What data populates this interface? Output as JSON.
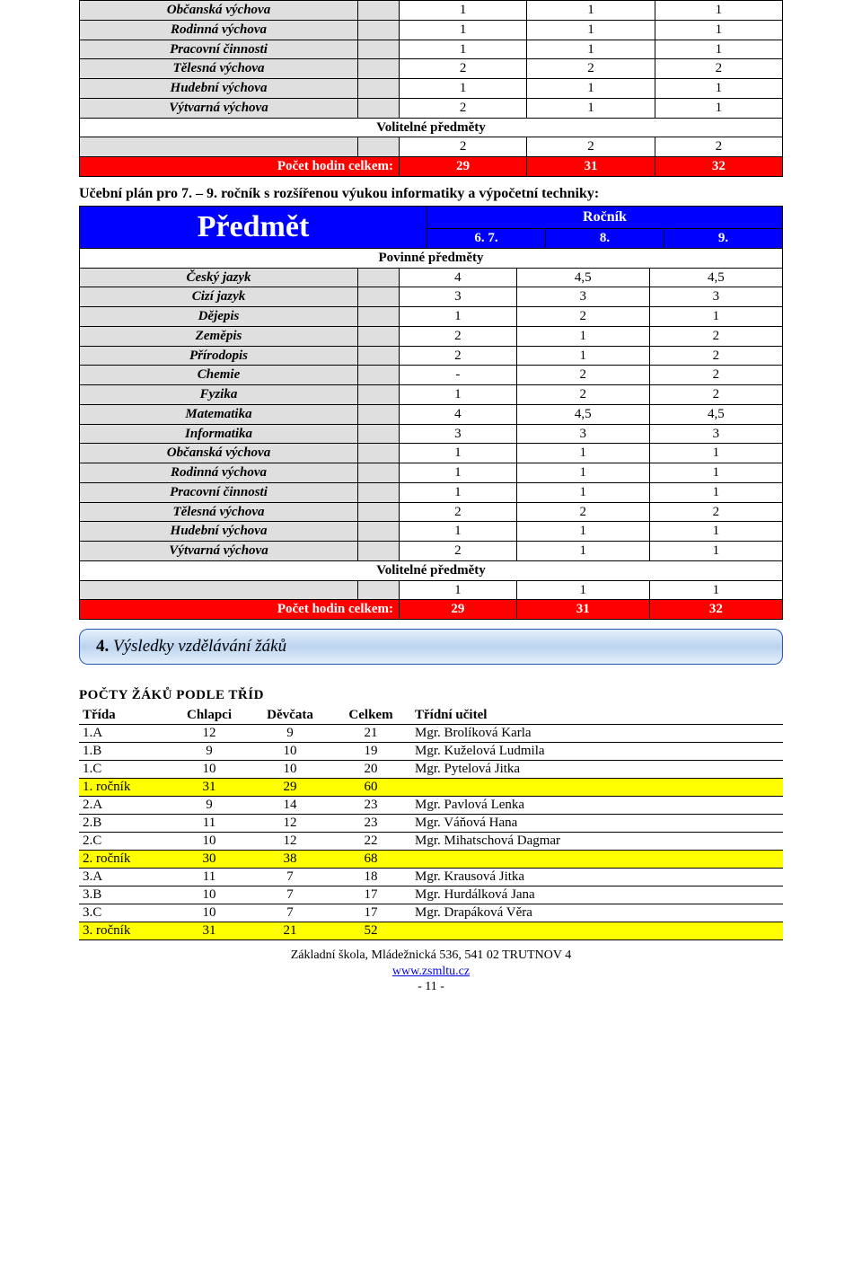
{
  "table1": {
    "rows": [
      {
        "name": "Občanská výchova",
        "v": [
          "1",
          "1",
          "1"
        ]
      },
      {
        "name": "Rodinná výchova",
        "v": [
          "1",
          "1",
          "1"
        ]
      },
      {
        "name": "Pracovní činnosti",
        "v": [
          "1",
          "1",
          "1"
        ]
      },
      {
        "name": "Tělesná výchova",
        "v": [
          "2",
          "2",
          "2"
        ]
      },
      {
        "name": "Hudební výchova",
        "v": [
          "1",
          "1",
          "1"
        ]
      },
      {
        "name": "Výtvarná výchova",
        "v": [
          "2",
          "1",
          "1"
        ]
      }
    ],
    "section": "Volitelné předměty",
    "section_row": [
      "2",
      "2",
      "2"
    ],
    "total_label": "Počet hodin celkem:",
    "total": [
      "29",
      "31",
      "32"
    ]
  },
  "plan_heading": "Učební plán pro 7. – 9. ročník s rozšířenou výukou informatiky a výpočetní techniky:",
  "header": {
    "predmet": "Předmět",
    "rocnik": "Ročník",
    "cols": [
      "6. 7.",
      "8.",
      "9."
    ]
  },
  "table2": {
    "section1": "Povinné předměty",
    "rows": [
      {
        "name": "Český jazyk",
        "v": [
          "4",
          "4,5",
          "4,5"
        ]
      },
      {
        "name": "Cizí jazyk",
        "v": [
          "3",
          "3",
          "3"
        ]
      },
      {
        "name": "Dějepis",
        "v": [
          "1",
          "2",
          "1"
        ]
      },
      {
        "name": "Zeměpis",
        "v": [
          "2",
          "1",
          "2"
        ]
      },
      {
        "name": "Přírodopis",
        "v": [
          "2",
          "1",
          "2"
        ]
      },
      {
        "name": "Chemie",
        "v": [
          "-",
          "2",
          "2"
        ]
      },
      {
        "name": "Fyzika",
        "v": [
          "1",
          "2",
          "2"
        ]
      },
      {
        "name": "Matematika",
        "v": [
          "4",
          "4,5",
          "4,5"
        ]
      },
      {
        "name": "Informatika",
        "v": [
          "3",
          "3",
          "3"
        ]
      },
      {
        "name": "Občanská výchova",
        "v": [
          "1",
          "1",
          "1"
        ]
      },
      {
        "name": "Rodinná výchova",
        "v": [
          "1",
          "1",
          "1"
        ]
      },
      {
        "name": "Pracovní činnosti",
        "v": [
          "1",
          "1",
          "1"
        ]
      },
      {
        "name": "Tělesná výchova",
        "v": [
          "2",
          "2",
          "2"
        ]
      },
      {
        "name": "Hudební výchova",
        "v": [
          "1",
          "1",
          "1"
        ]
      },
      {
        "name": "Výtvarná výchova",
        "v": [
          "2",
          "1",
          "1"
        ]
      }
    ],
    "section2": "Volitelné předměty",
    "section_row": [
      "1",
      "1",
      "1"
    ],
    "total_label": "Počet hodin celkem:",
    "total": [
      "29",
      "31",
      "32"
    ]
  },
  "results": {
    "num": "4.",
    "text": " Výsledky vzdělávání žáků"
  },
  "students": {
    "heading": "POČTY  ŽÁKŮ  PODLE  TŘÍD",
    "columns": [
      "Třída",
      "Chlapci",
      "Děvčata",
      "Celkem",
      "Třídní učitel"
    ],
    "groups": [
      {
        "rows": [
          {
            "c": [
              "1.A",
              "12",
              "9",
              "21",
              "Mgr. Brolíková Karla"
            ]
          },
          {
            "c": [
              "1.B",
              "9",
              "10",
              "19",
              "Mgr. Kuželová Ludmila"
            ]
          },
          {
            "c": [
              "1.C",
              "10",
              "10",
              "20",
              "Mgr. Pytelová Jitka"
            ]
          }
        ],
        "sum": [
          "1. ročník",
          "31",
          "29",
          "60",
          ""
        ]
      },
      {
        "rows": [
          {
            "c": [
              "2.A",
              "9",
              "14",
              "23",
              "Mgr. Pavlová Lenka"
            ]
          },
          {
            "c": [
              "2.B",
              "11",
              "12",
              "23",
              "Mgr. Váňová Hana"
            ]
          },
          {
            "c": [
              "2.C",
              "10",
              "12",
              "22",
              "Mgr. Mihatschová Dagmar"
            ]
          }
        ],
        "sum": [
          "2. ročník",
          "30",
          "38",
          "68",
          ""
        ]
      },
      {
        "rows": [
          {
            "c": [
              "3.A",
              "11",
              "7",
              "18",
              "Mgr. Krausová Jitka"
            ]
          },
          {
            "c": [
              "3.B",
              "10",
              "7",
              "17",
              "Mgr. Hurdálková Jana"
            ]
          },
          {
            "c": [
              "3.C",
              "10",
              "7",
              "17",
              "Mgr. Drapáková Věra"
            ]
          }
        ],
        "sum": [
          "3. ročník",
          "31",
          "21",
          "52",
          ""
        ]
      }
    ]
  },
  "footer": {
    "l1": "Základní škola, Mládežnická 536, 541 02 TRUTNOV 4",
    "l2": "www.zsmltu.cz",
    "l3": "- 11 -"
  }
}
